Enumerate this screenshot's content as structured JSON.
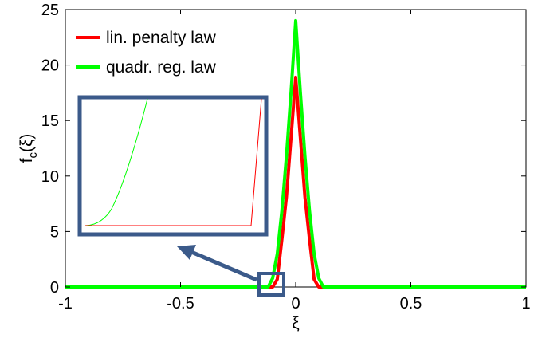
{
  "chart_data": {
    "type": "line",
    "title": "",
    "xlabel": "ξ",
    "ylabel": "f_c(ξ)",
    "xlim": [
      -1,
      1
    ],
    "ylim": [
      0,
      25
    ],
    "xticks": [
      -1,
      -0.5,
      0,
      0.5,
      1
    ],
    "xtick_labels": [
      "-1",
      "-0.5",
      "0",
      "0.5",
      "1"
    ],
    "yticks": [
      0,
      5,
      10,
      15,
      20,
      25
    ],
    "ytick_labels": [
      "0",
      "5",
      "10",
      "15",
      "20",
      "25"
    ],
    "grid": false,
    "legend_position": "top-left",
    "series": [
      {
        "name": "lin. penalty law",
        "color": "#ff0000",
        "x": [
          -1,
          -0.1,
          -0.08,
          -0.06,
          -0.04,
          -0.02,
          0,
          0.02,
          0.04,
          0.06,
          0.08,
          0.1,
          1
        ],
        "y": [
          0,
          0,
          0.7,
          4.3,
          8.1,
          13.5,
          18.9,
          13.5,
          8.1,
          4.3,
          0.7,
          0,
          0
        ]
      },
      {
        "name": "quadr. reg. law",
        "color": "#00ff00",
        "x": [
          -1,
          -0.12,
          -0.1,
          -0.08,
          -0.06,
          -0.04,
          -0.02,
          0,
          0.02,
          0.04,
          0.06,
          0.08,
          0.1,
          0.12,
          1
        ],
        "y": [
          0,
          0,
          0.8,
          3.0,
          6.9,
          11.8,
          17.6,
          24.0,
          17.6,
          11.8,
          6.9,
          3.0,
          0.8,
          0,
          0
        ]
      }
    ],
    "inset": {
      "zoom_region": {
        "x": [
          -0.15,
          -0.07
        ],
        "y": [
          0,
          1.6
        ]
      },
      "frame_color": "#3b5a8a"
    }
  }
}
